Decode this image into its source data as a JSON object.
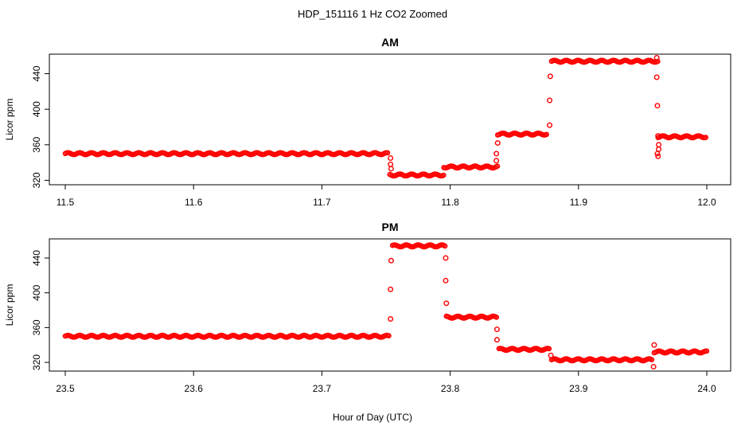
{
  "figure": {
    "title": "HDP_151116  1 Hz CO2 Zoomed",
    "xlabel": "Hour of Day (UTC)"
  },
  "chart_data": [
    {
      "type": "scatter",
      "title": "AM",
      "xlabel": "Hour of Day (UTC)",
      "ylabel": "Licor ppm",
      "xlim": [
        11.5,
        12.0
      ],
      "ylim": [
        315,
        462
      ],
      "xticks": [
        11.5,
        11.6,
        11.7,
        11.8,
        11.9,
        12.0
      ],
      "xtick_labels": [
        "11.5",
        "11.6",
        "11.7",
        "11.8",
        "11.9",
        "12.0"
      ],
      "yticks": [
        320,
        360,
        400,
        440
      ],
      "ytick_labels": [
        "320",
        "360",
        "400",
        "440"
      ],
      "grid": false,
      "marker_color": "#ff0000",
      "segments": [
        {
          "x": [
            11.5,
            11.752
          ],
          "y": 350
        },
        {
          "x": [
            11.753,
            11.795
          ],
          "y": 326
        },
        {
          "x": [
            11.795,
            11.837
          ],
          "y": 335
        },
        {
          "x": [
            11.837,
            11.876
          ],
          "y": 372
        },
        {
          "x": [
            11.879,
            11.962
          ],
          "y": 454
        },
        {
          "x": [
            11.962,
            12.0
          ],
          "y": 369
        }
      ],
      "transitions": [
        {
          "x": 11.7535,
          "y": 345
        },
        {
          "x": 11.7535,
          "y": 338
        },
        {
          "x": 11.754,
          "y": 333
        },
        {
          "x": 11.836,
          "y": 342
        },
        {
          "x": 11.836,
          "y": 350
        },
        {
          "x": 11.837,
          "y": 362
        },
        {
          "x": 11.8775,
          "y": 382
        },
        {
          "x": 11.8775,
          "y": 410
        },
        {
          "x": 11.878,
          "y": 437
        },
        {
          "x": 11.961,
          "y": 436
        },
        {
          "x": 11.9615,
          "y": 404
        },
        {
          "x": 11.962,
          "y": 370
        },
        {
          "x": 11.9625,
          "y": 355
        },
        {
          "x": 11.962,
          "y": 347
        },
        {
          "x": 11.9615,
          "y": 350
        },
        {
          "x": 11.9625,
          "y": 360
        },
        {
          "x": 11.961,
          "y": 458
        }
      ]
    },
    {
      "type": "scatter",
      "title": "PM",
      "xlabel": "Hour of Day (UTC)",
      "ylabel": "Licor ppm",
      "xlim": [
        23.5,
        24.0
      ],
      "ylim": [
        310,
        462
      ],
      "xticks": [
        23.5,
        23.6,
        23.7,
        23.8,
        23.9,
        24.0
      ],
      "xtick_labels": [
        "23.5",
        "23.6",
        "23.7",
        "23.8",
        "23.9",
        "24.0"
      ],
      "yticks": [
        320,
        360,
        400,
        440
      ],
      "ytick_labels": [
        "320",
        "360",
        "400",
        "440"
      ],
      "grid": false,
      "marker_color": "#ff0000",
      "segments": [
        {
          "x": [
            23.5,
            23.753
          ],
          "y": 350
        },
        {
          "x": [
            23.755,
            23.796
          ],
          "y": 454
        },
        {
          "x": [
            23.797,
            23.837
          ],
          "y": 372
        },
        {
          "x": [
            23.838,
            23.878
          ],
          "y": 335
        },
        {
          "x": [
            23.879,
            23.958
          ],
          "y": 323
        },
        {
          "x": [
            23.959,
            24.0
          ],
          "y": 332
        }
      ],
      "transitions": [
        {
          "x": 23.7535,
          "y": 370
        },
        {
          "x": 23.7535,
          "y": 404
        },
        {
          "x": 23.754,
          "y": 437
        },
        {
          "x": 23.7965,
          "y": 440
        },
        {
          "x": 23.7965,
          "y": 414
        },
        {
          "x": 23.797,
          "y": 388
        },
        {
          "x": 23.8365,
          "y": 358
        },
        {
          "x": 23.8365,
          "y": 346
        },
        {
          "x": 23.8785,
          "y": 328
        },
        {
          "x": 23.9585,
          "y": 315
        },
        {
          "x": 23.959,
          "y": 340
        }
      ]
    }
  ]
}
